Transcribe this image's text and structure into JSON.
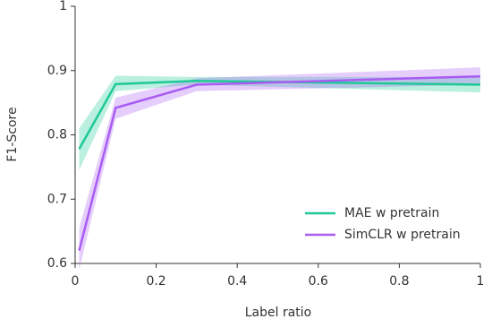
{
  "chart_data": {
    "type": "line",
    "xlabel": "Label ratio",
    "ylabel": "F1-Score",
    "x": [
      0.01,
      0.1,
      0.3,
      1
    ],
    "series": [
      {
        "name": "MAE w pretrain",
        "color": "#1ec997",
        "values": [
          0.778,
          0.879,
          0.884,
          0.878
        ],
        "lower": [
          0.745,
          0.868,
          0.878,
          0.866
        ],
        "upper": [
          0.81,
          0.892,
          0.89,
          0.89
        ]
      },
      {
        "name": "SimCLR w pretrain",
        "color": "#a95cf2",
        "values": [
          0.62,
          0.842,
          0.878,
          0.891
        ],
        "lower": [
          0.59,
          0.825,
          0.868,
          0.878
        ],
        "upper": [
          0.655,
          0.858,
          0.888,
          0.905
        ]
      }
    ],
    "xlim": [
      0,
      1
    ],
    "ylim": [
      0.6,
      1
    ],
    "xticks": [
      0,
      0.2,
      0.4,
      0.6,
      0.8,
      1
    ],
    "yticks": [
      0.6,
      0.7,
      0.8,
      0.9,
      1
    ],
    "grid": false,
    "legend": "lower right"
  }
}
